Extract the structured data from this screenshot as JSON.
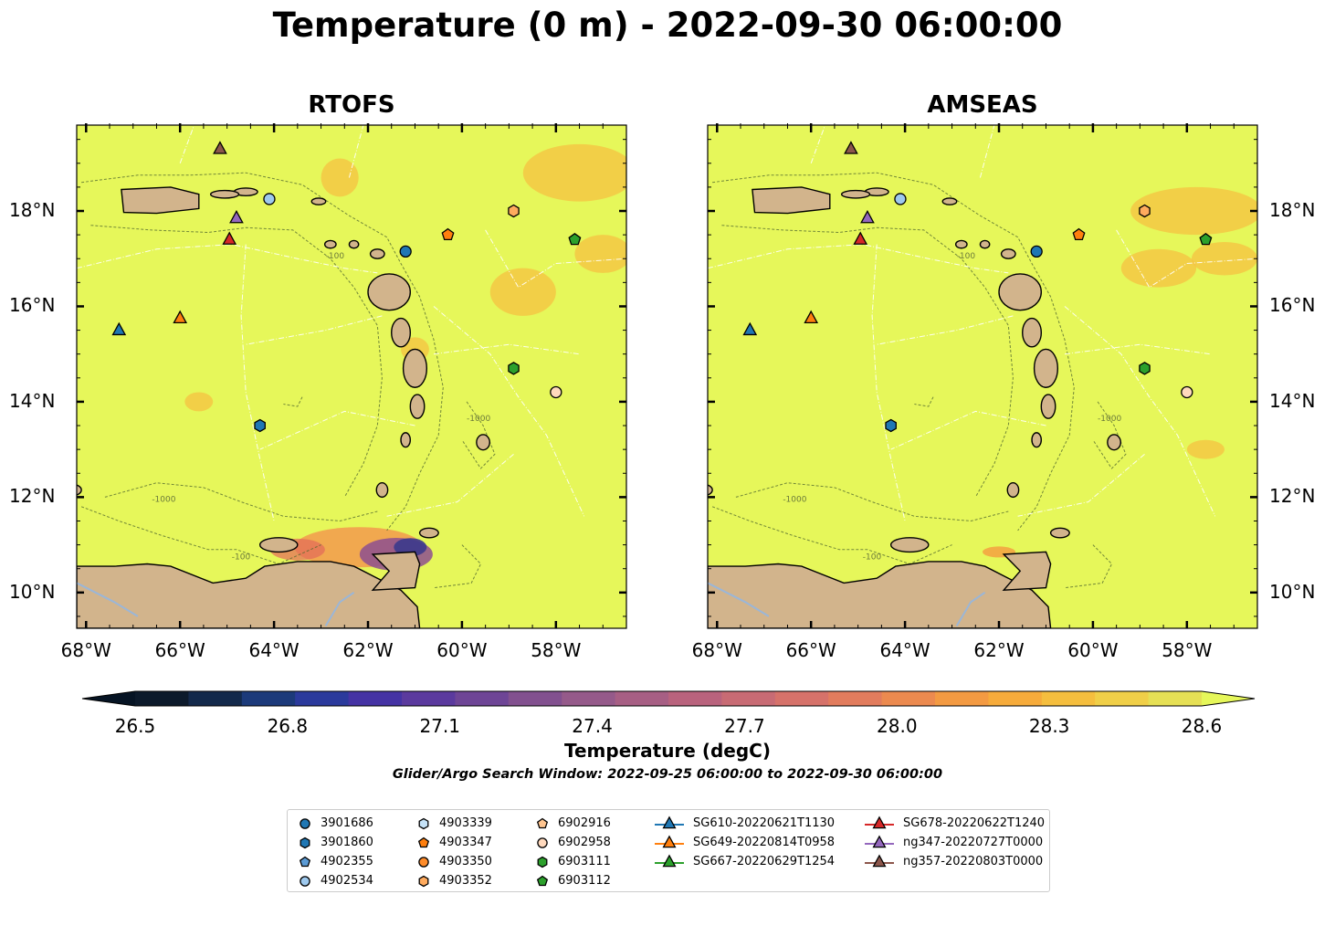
{
  "title": "Temperature (0 m) - 2022-09-30 06:00:00",
  "panels": [
    {
      "title": "RTOFS"
    },
    {
      "title": "AMSEAS"
    }
  ],
  "lon_ticks": [
    "68°W",
    "66°W",
    "64°W",
    "62°W",
    "60°W",
    "58°W"
  ],
  "lat_ticks": [
    "18°N",
    "16°N",
    "14°N",
    "12°N",
    "10°N"
  ],
  "contour_labels": [
    "-100",
    "-1000"
  ],
  "colorbar": {
    "label": "Temperature (degC)",
    "ticks": [
      "26.5",
      "26.8",
      "27.1",
      "27.4",
      "27.7",
      "28.0",
      "28.3",
      "28.6"
    ],
    "range": [
      26.5,
      28.6
    ]
  },
  "search_window": "Glider/Argo Search Window: 2022-09-25 06:00:00 to 2022-09-30 06:00:00",
  "colors": {
    "ocean": "#e6f75a",
    "land": "#d2b48c",
    "warm_patch": "#f5c242",
    "river": "#9ab6d8"
  },
  "legend": [
    {
      "label": "3901686",
      "marker": "circle",
      "color": "#1f77b4"
    },
    {
      "label": "3901860",
      "marker": "hexagon",
      "color": "#1f77b4"
    },
    {
      "label": "4902355",
      "marker": "pentagon",
      "color": "#5b9bd5"
    },
    {
      "label": "4902534",
      "marker": "circle",
      "color": "#9ec9ee"
    },
    {
      "label": "4903339",
      "marker": "hexagon",
      "color": "#c5e2f7"
    },
    {
      "label": "4903347",
      "marker": "pentagon",
      "color": "#ff7f0e"
    },
    {
      "label": "4903350",
      "marker": "circle",
      "color": "#ff8c2a"
    },
    {
      "label": "4903352",
      "marker": "hexagon",
      "color": "#ffab5e"
    },
    {
      "label": "6902916",
      "marker": "pentagon",
      "color": "#ffc590"
    },
    {
      "label": "6902958",
      "marker": "circle",
      "color": "#ffd9bd"
    },
    {
      "label": "6903111",
      "marker": "hexagon",
      "color": "#2ca02c"
    },
    {
      "label": "6903112",
      "marker": "pentagon",
      "color": "#2ca02c"
    },
    {
      "label": "SG610-20220621T1130",
      "marker": "triangle",
      "color": "#1f77b4"
    },
    {
      "label": "SG649-20220814T0958",
      "marker": "triangle",
      "color": "#ff7f0e"
    },
    {
      "label": "SG667-20220629T1254",
      "marker": "triangle",
      "color": "#2ca02c"
    },
    {
      "label": "SG678-20220622T1240",
      "marker": "triangle",
      "color": "#d62728"
    },
    {
      "label": "ng347-20220727T0000",
      "marker": "triangle",
      "color": "#9467bd"
    },
    {
      "label": "ng357-20220803T0000",
      "marker": "triangle",
      "color": "#8c564b"
    }
  ],
  "stations": [
    {
      "id": "3901686",
      "marker": "circle",
      "color": "#1f77b4",
      "lon": -61.2,
      "lat": 17.15
    },
    {
      "id": "3901860",
      "marker": "hexagon",
      "color": "#1f77b4",
      "lon": -64.3,
      "lat": 13.5
    },
    {
      "id": "4902534",
      "marker": "circle",
      "color": "#9ec9ee",
      "lon": -64.1,
      "lat": 18.25
    },
    {
      "id": "4903347",
      "marker": "pentagon",
      "color": "#ff7f0e",
      "lon": -60.3,
      "lat": 17.5
    },
    {
      "id": "4903352",
      "marker": "hexagon",
      "color": "#ffab5e",
      "lon": -58.9,
      "lat": 18.0
    },
    {
      "id": "6902958",
      "marker": "circle",
      "color": "#ffd9bd",
      "lon": -58.0,
      "lat": 14.2
    },
    {
      "id": "6903111",
      "marker": "hexagon",
      "color": "#2ca02c",
      "lon": -58.9,
      "lat": 14.7
    },
    {
      "id": "6903112",
      "marker": "pentagon",
      "color": "#2ca02c",
      "lon": -57.6,
      "lat": 17.4
    },
    {
      "id": "SG610-20220621T1130",
      "marker": "triangle",
      "color": "#1f77b4",
      "lon": -67.3,
      "lat": 15.5
    },
    {
      "id": "SG649-20220814T0958",
      "marker": "triangle",
      "color": "#ff7f0e",
      "lon": -66.0,
      "lat": 15.75
    },
    {
      "id": "SG678-20220622T1240",
      "marker": "triangle",
      "color": "#d62728",
      "lon": -64.95,
      "lat": 17.4
    },
    {
      "id": "ng347-20220727T0000",
      "marker": "triangle",
      "color": "#9467bd",
      "lon": -64.8,
      "lat": 17.85
    },
    {
      "id": "ng357-20220803T0000",
      "marker": "triangle",
      "color": "#8c564b",
      "lon": -65.15,
      "lat": 19.3
    }
  ]
}
